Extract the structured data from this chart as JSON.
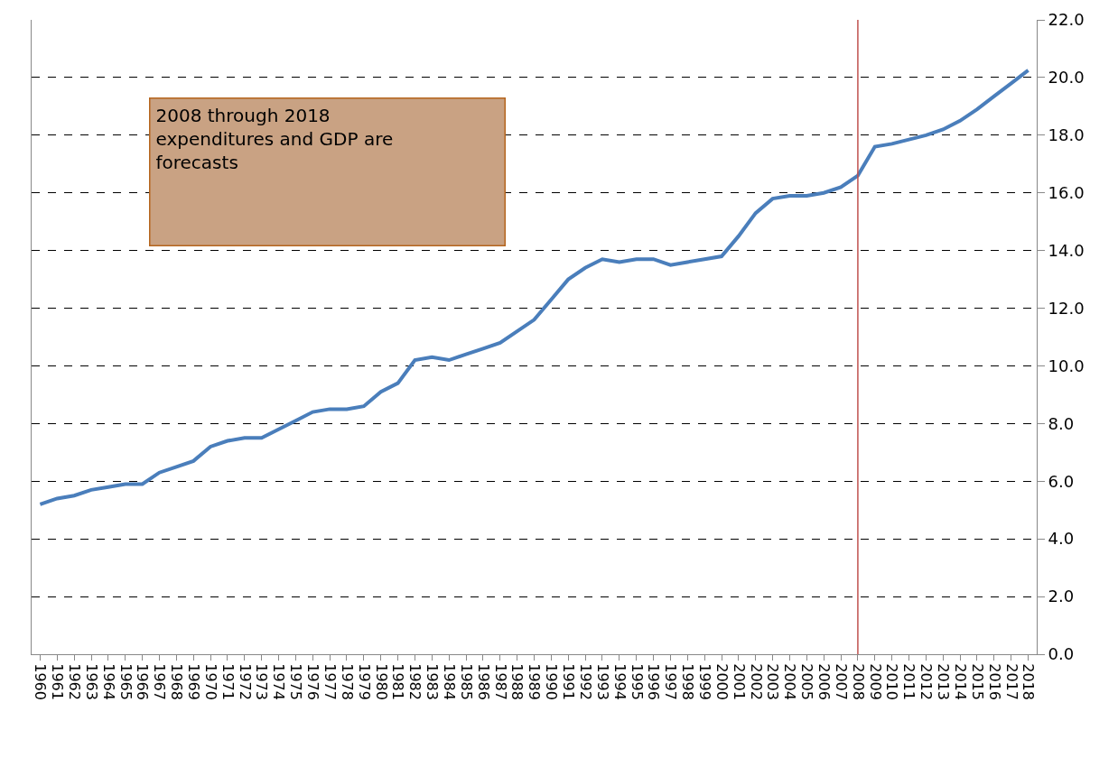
{
  "chart_data": {
    "type": "line",
    "categories": [
      "1960",
      "1961",
      "1962",
      "1963",
      "1964",
      "1965",
      "1966",
      "1967",
      "1968",
      "1969",
      "1970",
      "1971",
      "1972",
      "1973",
      "1974",
      "1975",
      "1976",
      "1977",
      "1978",
      "1979",
      "1980",
      "1981",
      "1982",
      "1983",
      "1984",
      "1985",
      "1986",
      "1987",
      "1988",
      "1989",
      "1990",
      "1991",
      "1992",
      "1993",
      "1994",
      "1995",
      "1996",
      "1997",
      "1998",
      "1999",
      "2000",
      "2001",
      "2002",
      "2003",
      "2004",
      "2005",
      "2006",
      "2007",
      "2008",
      "2009",
      "2010",
      "2011",
      "2012",
      "2013",
      "2014",
      "2015",
      "2016",
      "2017",
      "2018"
    ],
    "series": [
      {
        "color": "#4a7ebb",
        "values": [
          5.2,
          5.4,
          5.5,
          5.7,
          5.8,
          5.9,
          5.9,
          6.3,
          6.5,
          6.7,
          7.2,
          7.4,
          7.5,
          7.5,
          7.8,
          8.1,
          8.4,
          8.5,
          8.5,
          8.6,
          9.1,
          9.4,
          10.2,
          10.3,
          10.2,
          10.4,
          10.6,
          10.8,
          11.2,
          11.6,
          12.3,
          13.0,
          13.4,
          13.7,
          13.6,
          13.7,
          13.7,
          13.5,
          13.6,
          13.7,
          13.8,
          14.5,
          15.3,
          15.8,
          15.9,
          15.9,
          16.0,
          16.2,
          16.6,
          17.6,
          17.7,
          17.85,
          18.0,
          18.2,
          18.5,
          18.9,
          19.35,
          19.8,
          20.25
        ]
      }
    ],
    "ylim": [
      0,
      22
    ],
    "yticks": [
      {
        "value": 0,
        "label": "0.0"
      },
      {
        "value": 2,
        "label": "2.0"
      },
      {
        "value": 4,
        "label": "4.0"
      },
      {
        "value": 6,
        "label": "6.0"
      },
      {
        "value": 8,
        "label": "8.0"
      },
      {
        "value": 10,
        "label": "10.0"
      },
      {
        "value": 12,
        "label": "12.0"
      },
      {
        "value": 14,
        "label": "14.0"
      },
      {
        "value": 16,
        "label": "16.0"
      },
      {
        "value": 18,
        "label": "18.0"
      },
      {
        "value": 20,
        "label": "20.0"
      },
      {
        "value": 22,
        "label": "22.0"
      }
    ],
    "ref_lines": [
      {
        "axis": "x",
        "value": "2008",
        "color": "#c0504d"
      }
    ],
    "annotations": [
      "2008 through 2018 expenditures and GDP are forecasts"
    ],
    "grid": "y",
    "marker": "none",
    "line_style": "solid"
  }
}
